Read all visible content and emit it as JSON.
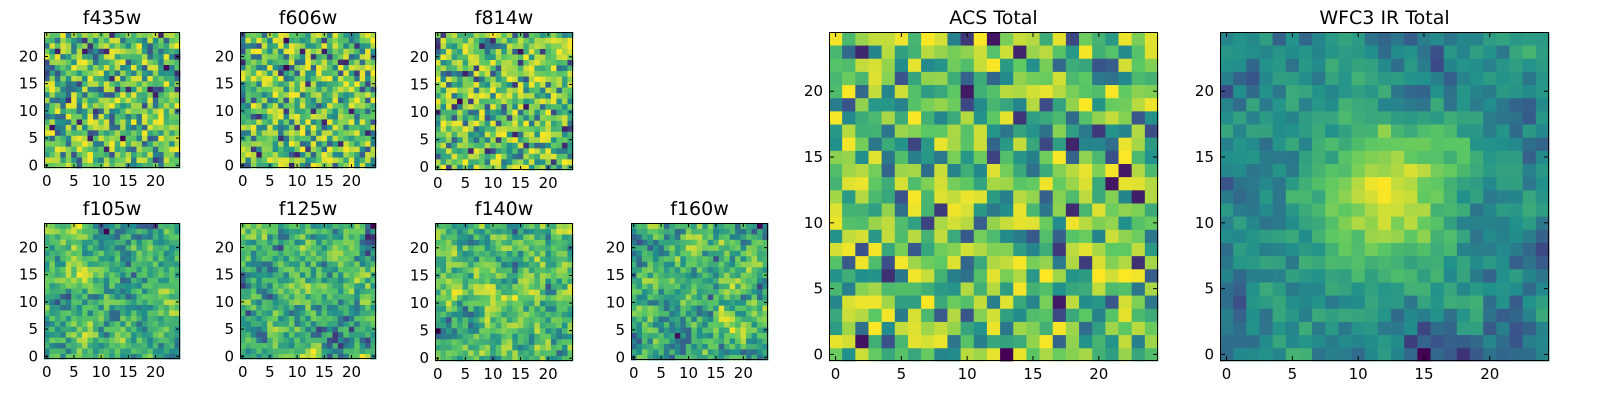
{
  "figure": {
    "panel_titles": [
      "f435w",
      "f606w",
      "f814w",
      "f105w",
      "f125w",
      "f140w",
      "f160w",
      "ACS Total",
      "WFC3 IR Total"
    ]
  },
  "chart_data": [
    {
      "type": "heatmap",
      "title": "f435w",
      "grid_size": 25,
      "xlim": [
        0,
        25
      ],
      "ylim": [
        0,
        25
      ],
      "xticks": [
        "0",
        "5",
        "10",
        "15",
        "20"
      ],
      "yticks": [
        "0",
        "5",
        "10",
        "15",
        "20"
      ],
      "colormap": "viridis",
      "texture": "pixel-scale noise",
      "seed": 11
    },
    {
      "type": "heatmap",
      "title": "f606w",
      "grid_size": 25,
      "xlim": [
        0,
        25
      ],
      "ylim": [
        0,
        25
      ],
      "xticks": [
        "0",
        "5",
        "10",
        "15",
        "20"
      ],
      "yticks": [
        "0",
        "5",
        "10",
        "15",
        "20"
      ],
      "colormap": "viridis",
      "texture": "pixel-scale noise",
      "seed": 23
    },
    {
      "type": "heatmap",
      "title": "f814w",
      "grid_size": 25,
      "xlim": [
        0,
        25
      ],
      "ylim": [
        0,
        25
      ],
      "xticks": [
        "0",
        "5",
        "10",
        "15",
        "20"
      ],
      "yticks": [
        "0",
        "5",
        "10",
        "15",
        "20"
      ],
      "colormap": "viridis",
      "texture": "pixel-scale noise",
      "seed": 37
    },
    {
      "type": "heatmap",
      "title": "f105w",
      "grid_size": 25,
      "xlim": [
        0,
        25
      ],
      "ylim": [
        0,
        25
      ],
      "xticks": [
        "0",
        "5",
        "10",
        "15",
        "20"
      ],
      "yticks": [
        "0",
        "5",
        "10",
        "15",
        "20"
      ],
      "colormap": "viridis",
      "texture": "smooth correlated noise",
      "seed": 41
    },
    {
      "type": "heatmap",
      "title": "f125w",
      "grid_size": 25,
      "xlim": [
        0,
        25
      ],
      "ylim": [
        0,
        25
      ],
      "xticks": [
        "0",
        "5",
        "10",
        "15",
        "20"
      ],
      "yticks": [
        "0",
        "5",
        "10",
        "15",
        "20"
      ],
      "colormap": "viridis",
      "texture": "smooth correlated noise",
      "seed": 53
    },
    {
      "type": "heatmap",
      "title": "f140w",
      "grid_size": 25,
      "xlim": [
        0,
        25
      ],
      "ylim": [
        0,
        25
      ],
      "xticks": [
        "0",
        "5",
        "10",
        "15",
        "20"
      ],
      "yticks": [
        "0",
        "5",
        "10",
        "15",
        "20"
      ],
      "colormap": "viridis",
      "texture": "smooth correlated noise",
      "seed": 67
    },
    {
      "type": "heatmap",
      "title": "f160w",
      "grid_size": 25,
      "xlim": [
        0,
        25
      ],
      "ylim": [
        0,
        25
      ],
      "xticks": [
        "0",
        "5",
        "10",
        "15",
        "20"
      ],
      "yticks": [
        "0",
        "5",
        "10",
        "15",
        "20"
      ],
      "colormap": "viridis",
      "texture": "smooth correlated noise",
      "seed": 79
    },
    {
      "type": "heatmap",
      "title": "ACS Total",
      "grid_size": 25,
      "xlim": [
        0,
        25
      ],
      "ylim": [
        0,
        25
      ],
      "xticks": [
        "0",
        "5",
        "10",
        "15",
        "20"
      ],
      "yticks": [
        "0",
        "5",
        "10",
        "15",
        "20"
      ],
      "colormap": "viridis",
      "texture": "pixel-scale noise",
      "seed": 97
    },
    {
      "type": "heatmap",
      "title": "WFC3 IR Total",
      "grid_size": 25,
      "xlim": [
        0,
        25
      ],
      "ylim": [
        0,
        25
      ],
      "xticks": [
        "0",
        "5",
        "10",
        "15",
        "20"
      ],
      "yticks": [
        "0",
        "5",
        "10",
        "15",
        "20"
      ],
      "colormap": "viridis",
      "texture": "smooth correlated noise with central bright peak",
      "seed": 101
    }
  ]
}
